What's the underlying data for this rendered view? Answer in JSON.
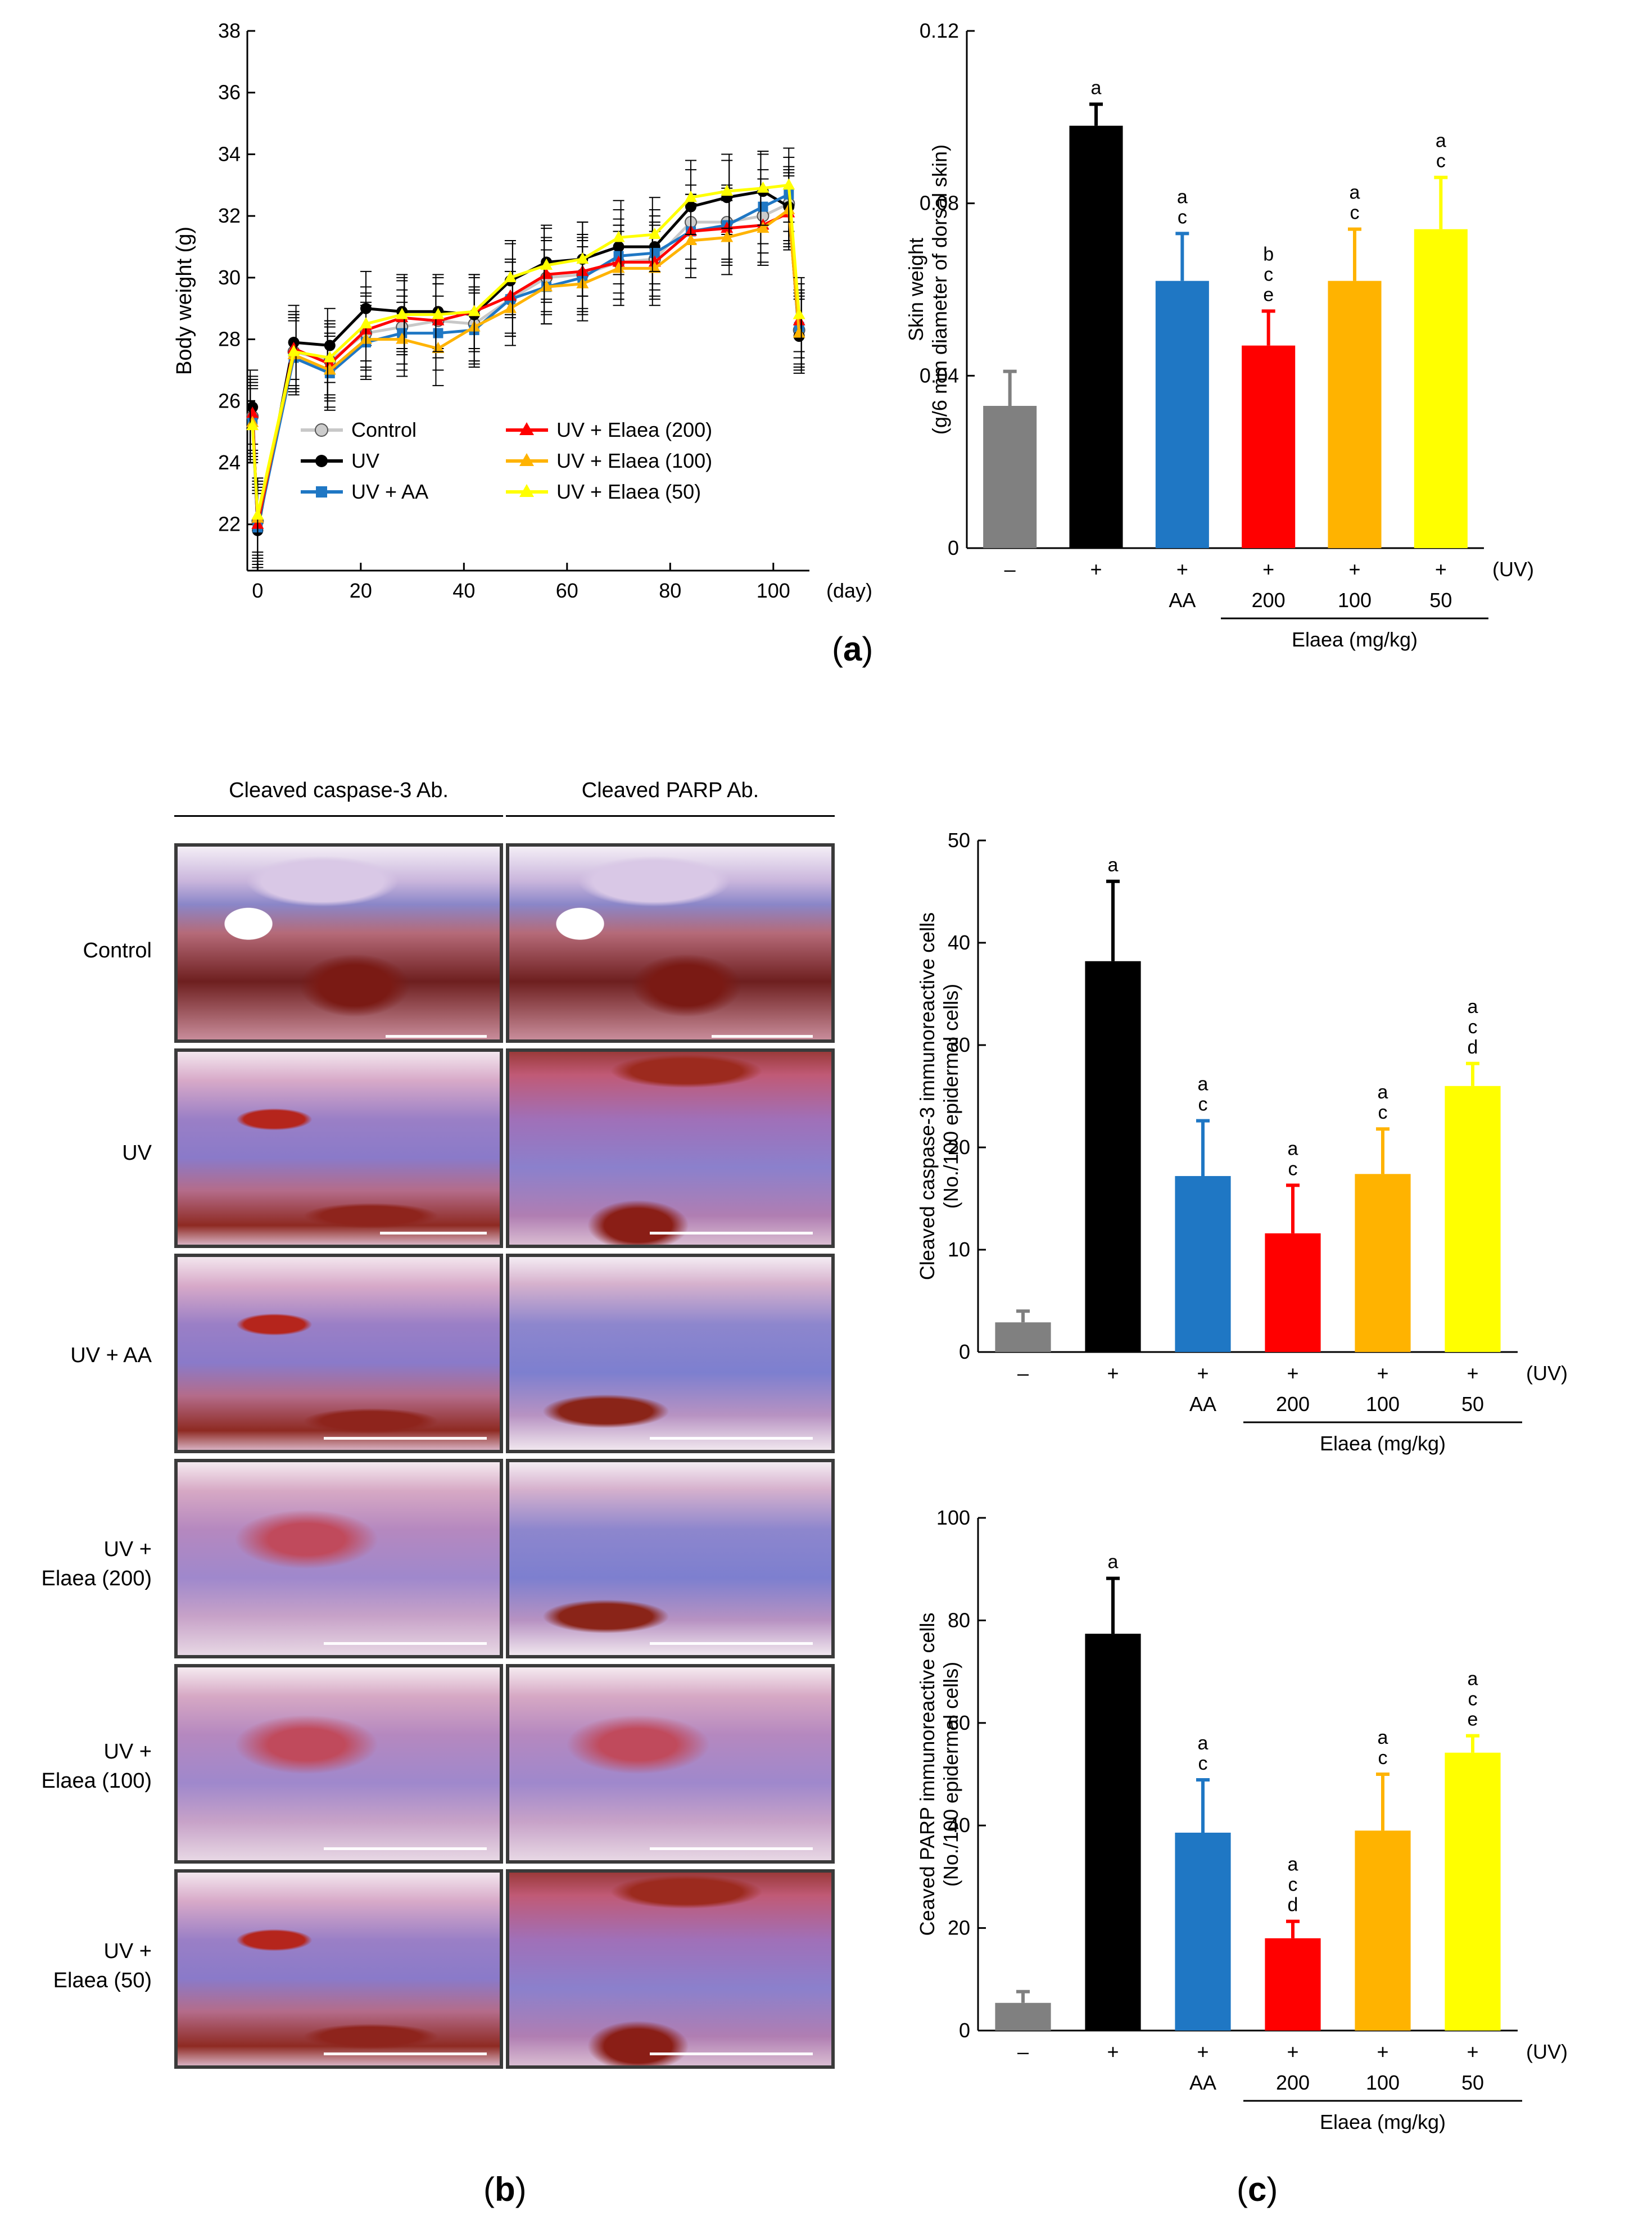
{
  "panel_labels": {
    "a": "(a)",
    "b": "(b)",
    "c": "(c)"
  },
  "colors": {
    "control": "#808080",
    "uv": "#000000",
    "aa": "#1f77c4",
    "e200": "#ff0000",
    "e100": "#ffb300",
    "e50": "#ffff00",
    "line_control": "#c8c8c8"
  },
  "chart_data": [
    {
      "id": "body-weight",
      "type": "line",
      "title": "",
      "ylabel": "Body weight  (g)",
      "xlabel_unit": "(day)",
      "x_ticks": [
        0,
        20,
        40,
        60,
        80,
        100
      ],
      "y_ticks": [
        22,
        24,
        26,
        28,
        30,
        32,
        34,
        36,
        38
      ],
      "xlim": [
        -2,
        107
      ],
      "ylim": [
        20.5,
        38
      ],
      "x": [
        -1,
        0,
        7,
        14,
        21,
        28,
        35,
        42,
        49,
        56,
        63,
        70,
        77,
        84,
        91,
        98,
        103,
        105
      ],
      "series": [
        {
          "key": "control",
          "name": "Control",
          "values": [
            25.5,
            22.1,
            27.6,
            27.3,
            28.2,
            28.4,
            28.6,
            28.5,
            29.3,
            30.0,
            30.1,
            30.5,
            30.6,
            31.8,
            31.8,
            32.0,
            32.4,
            28.3
          ]
        },
        {
          "key": "uv",
          "name": "UV",
          "values": [
            25.8,
            21.8,
            27.9,
            27.8,
            29.0,
            28.9,
            28.9,
            28.8,
            29.9,
            30.5,
            30.6,
            31.0,
            31.0,
            32.3,
            32.6,
            32.8,
            32.3,
            28.1
          ]
        },
        {
          "key": "aa",
          "name": "UV + AA",
          "values": [
            25.4,
            21.9,
            27.4,
            26.9,
            27.9,
            28.2,
            28.2,
            28.3,
            29.3,
            29.7,
            30.0,
            30.7,
            30.8,
            31.5,
            31.7,
            32.3,
            32.7,
            28.4
          ]
        },
        {
          "key": "e200",
          "name": "UV + Elaea (200)",
          "values": [
            25.6,
            22.0,
            27.7,
            27.2,
            28.3,
            28.7,
            28.6,
            28.9,
            29.4,
            30.1,
            30.2,
            30.5,
            30.5,
            31.5,
            31.6,
            31.7,
            32.1,
            28.6
          ]
        },
        {
          "key": "e100",
          "name": "UV + Elaea (100)",
          "values": [
            25.3,
            22.2,
            27.5,
            27.0,
            28.0,
            28.0,
            27.7,
            28.4,
            29.0,
            29.7,
            29.8,
            30.3,
            30.3,
            31.2,
            31.3,
            31.6,
            32.2,
            28.2
          ]
        },
        {
          "key": "e50",
          "name": "UV + Elaea (50)",
          "values": [
            25.2,
            22.3,
            27.6,
            27.4,
            28.5,
            28.8,
            28.8,
            28.9,
            30.0,
            30.4,
            30.6,
            31.3,
            31.4,
            32.6,
            32.8,
            32.9,
            33.0,
            28.8
          ]
        }
      ],
      "error": 1.2,
      "legend": "bottom-center"
    },
    {
      "id": "skin-weight",
      "type": "bar",
      "ylabel_lines": [
        "Skin weight",
        "(g/6 mm diameter of dorsal skin)"
      ],
      "y_ticks": [
        "0",
        "0.04",
        "0.08",
        "0.12"
      ],
      "ylim": [
        0,
        0.12
      ],
      "values": [
        0.033,
        0.098,
        0.062,
        0.047,
        0.062,
        0.074
      ],
      "errors": [
        0.008,
        0.005,
        0.011,
        0.008,
        0.012,
        0.012
      ],
      "letters": [
        "",
        "a",
        "a c",
        "b c e",
        "a c",
        "a c"
      ],
      "uv_row": [
        "–",
        "+",
        "+",
        "+",
        "+",
        "+"
      ],
      "uv_label": "(UV)",
      "treatment_row": [
        "",
        "",
        "AA",
        "200",
        "100",
        "50"
      ],
      "group_label": "Elaea (mg/kg)"
    },
    {
      "id": "caspase3",
      "type": "bar",
      "ylabel_lines": [
        "Cleaved caspase-3 immunoreactive cells",
        "(No./100 epidermal cells)"
      ],
      "y_ticks": [
        "0",
        "10",
        "20",
        "30",
        "40",
        "50"
      ],
      "ylim": [
        0,
        50
      ],
      "values": [
        2.9,
        38.2,
        17.2,
        11.6,
        17.4,
        26.0
      ],
      "errors": [
        1.1,
        7.8,
        5.4,
        4.7,
        4.4,
        2.2
      ],
      "letters": [
        "",
        "a",
        "a c",
        "a c",
        "a c",
        "a c d"
      ],
      "uv_row": [
        "–",
        "+",
        "+",
        "+",
        "+",
        "+"
      ],
      "uv_label": "(UV)",
      "treatment_row": [
        "",
        "",
        "AA",
        "200",
        "100",
        "50"
      ],
      "group_label": "Elaea (mg/kg)"
    },
    {
      "id": "parp",
      "type": "bar",
      "ylabel_lines": [
        "Ceaved PARP immunoreactive cells",
        "(No./100 epidermal cells)"
      ],
      "y_ticks": [
        "0",
        "20",
        "40",
        "60",
        "80",
        "100"
      ],
      "ylim": [
        0,
        100
      ],
      "values": [
        5.4,
        77.4,
        38.6,
        18.0,
        39.0,
        54.2
      ],
      "errors": [
        2.2,
        10.8,
        10.3,
        3.3,
        11.0,
        3.3
      ],
      "letters": [
        "",
        "a",
        "a c",
        "a c d",
        "a c",
        "a c e"
      ],
      "uv_row": [
        "–",
        "+",
        "+",
        "+",
        "+",
        "+"
      ],
      "uv_label": "(UV)",
      "treatment_row": [
        "",
        "",
        "AA",
        "200",
        "100",
        "50"
      ],
      "group_label": "Elaea (mg/kg)"
    }
  ],
  "histology": {
    "col_headers": [
      "Cleaved caspase-3 Ab.",
      "Cleaved PARP Ab."
    ],
    "rows": [
      "Control",
      "UV",
      "UV + AA",
      "UV +\nElaea (200)",
      "UV +\nElaea (100)",
      "UV +\nElaea (50)"
    ]
  }
}
